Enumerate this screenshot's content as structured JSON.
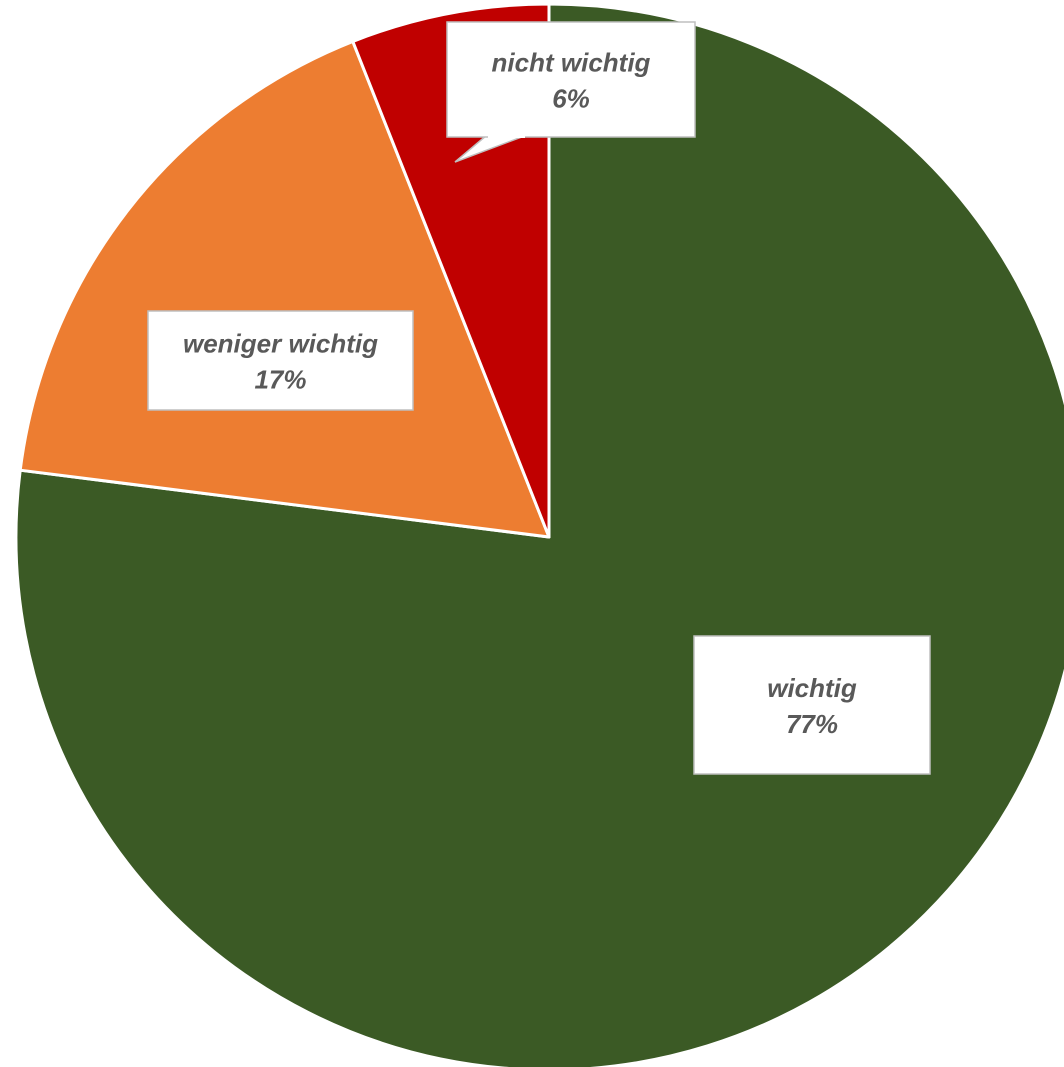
{
  "chart_data": {
    "type": "pie",
    "title": "",
    "slices": [
      {
        "label": "wichtig",
        "value": 77,
        "percent_label": "77%",
        "color": "#3b5a25"
      },
      {
        "label": "weniger wichtig",
        "value": 17,
        "percent_label": "17%",
        "color": "#ed7d31"
      },
      {
        "label": "nicht wichtig",
        "value": 6,
        "percent_label": "6%",
        "color": "#c00000"
      }
    ],
    "start_angle_deg": 0,
    "direction": "clockwise",
    "data_labels": "category-and-percent",
    "legend": "none"
  }
}
